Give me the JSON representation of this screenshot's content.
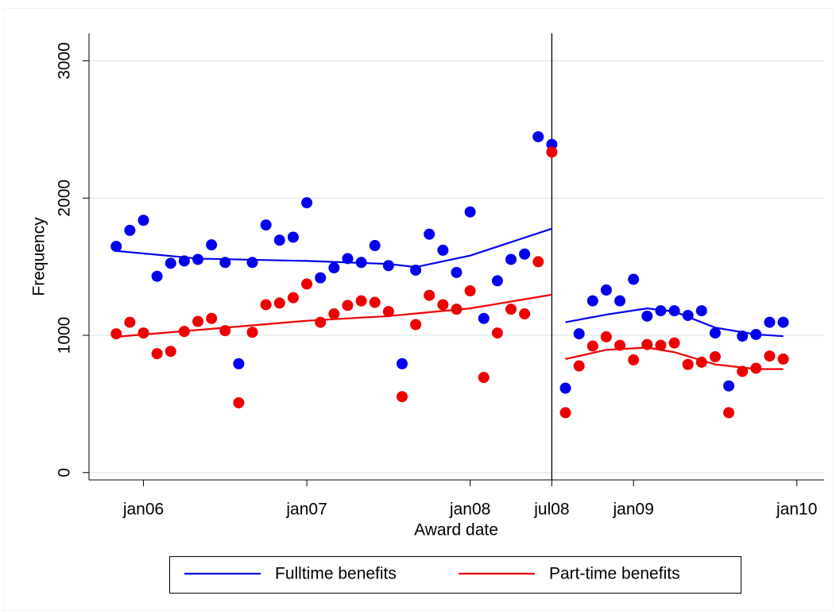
{
  "chart_data": {
    "type": "scatter",
    "xlabel": "Award date",
    "ylabel": "Frequency",
    "xlim": [
      548,
      602
    ],
    "ylim": [
      -100,
      3200
    ],
    "xticks": [
      {
        "value": 552,
        "label": "jan06"
      },
      {
        "value": 564,
        "label": "jan07"
      },
      {
        "value": 576,
        "label": "jan08"
      },
      {
        "value": 582,
        "label": "jul08"
      },
      {
        "value": 588,
        "label": "jan09"
      },
      {
        "value": 600,
        "label": "jan10"
      }
    ],
    "yticks": [
      0,
      1000,
      2000,
      3000
    ],
    "grid": true,
    "xline": 582,
    "legend": "bottom",
    "x": [
      550,
      551,
      552,
      553,
      554,
      555,
      556,
      557,
      558,
      559,
      560,
      561,
      562,
      563,
      564,
      565,
      566,
      567,
      568,
      569,
      570,
      571,
      572,
      573,
      574,
      575,
      576,
      577,
      578,
      579,
      580,
      581,
      582,
      583,
      584,
      585,
      586,
      587,
      588,
      589,
      590,
      591,
      592,
      593,
      594,
      595,
      596,
      597,
      598,
      599
    ],
    "points": [
      {
        "color": "#0000ee",
        "values": [
          1648,
          1765,
          1838,
          1430,
          1525,
          1542,
          1553,
          1659,
          1531,
          793,
          1531,
          1804,
          1693,
          1715,
          1966,
          1419,
          1492,
          1559,
          1531,
          1654,
          1508,
          793,
          1475,
          1737,
          1620,
          1458,
          1899,
          1123,
          1397,
          1553,
          1592,
          2447,
          2391,
          615,
          1011,
          1251,
          1330,
          1251,
          1408,
          1140,
          1179,
          1179,
          1145,
          1179,
          1017,
          631,
          994,
          1006,
          1095,
          1095
        ]
      },
      {
        "color": "#ee0000",
        "values": [
          1011,
          1095,
          1017,
          866,
          883,
          1028,
          1101,
          1123,
          1034,
          508,
          1022,
          1223,
          1235,
          1274,
          1374,
          1095,
          1156,
          1218,
          1251,
          1240,
          1173,
          553,
          1078,
          1291,
          1223,
          1190,
          1324,
          693,
          1017,
          1190,
          1156,
          1536,
          2335,
          436,
          777,
          922,
          989,
          927,
          821,
          933,
          927,
          944,
          788,
          804,
          844,
          436,
          737,
          760,
          849,
          827
        ]
      }
    ],
    "series": [
      {
        "name": "Fulltime benefits",
        "color": "#0000ee",
        "x": [
          550,
          556,
          564,
          570,
          572,
          576,
          582,
          null,
          583,
          586,
          589,
          591,
          594,
          597,
          599
        ],
        "values": [
          1615,
          1559,
          1542,
          1520,
          1497,
          1581,
          1777,
          null,
          1095,
          1151,
          1196,
          1173,
          1056,
          1006,
          994
        ]
      },
      {
        "name": "Part-time benefits",
        "color": "#ee0000",
        "x": [
          550,
          556,
          564,
          570,
          576,
          582,
          null,
          583,
          586,
          589,
          591,
          594,
          597,
          599
        ],
        "values": [
          989,
          1039,
          1106,
          1140,
          1196,
          1296,
          null,
          827,
          894,
          911,
          877,
          788,
          754,
          754
        ]
      }
    ]
  }
}
